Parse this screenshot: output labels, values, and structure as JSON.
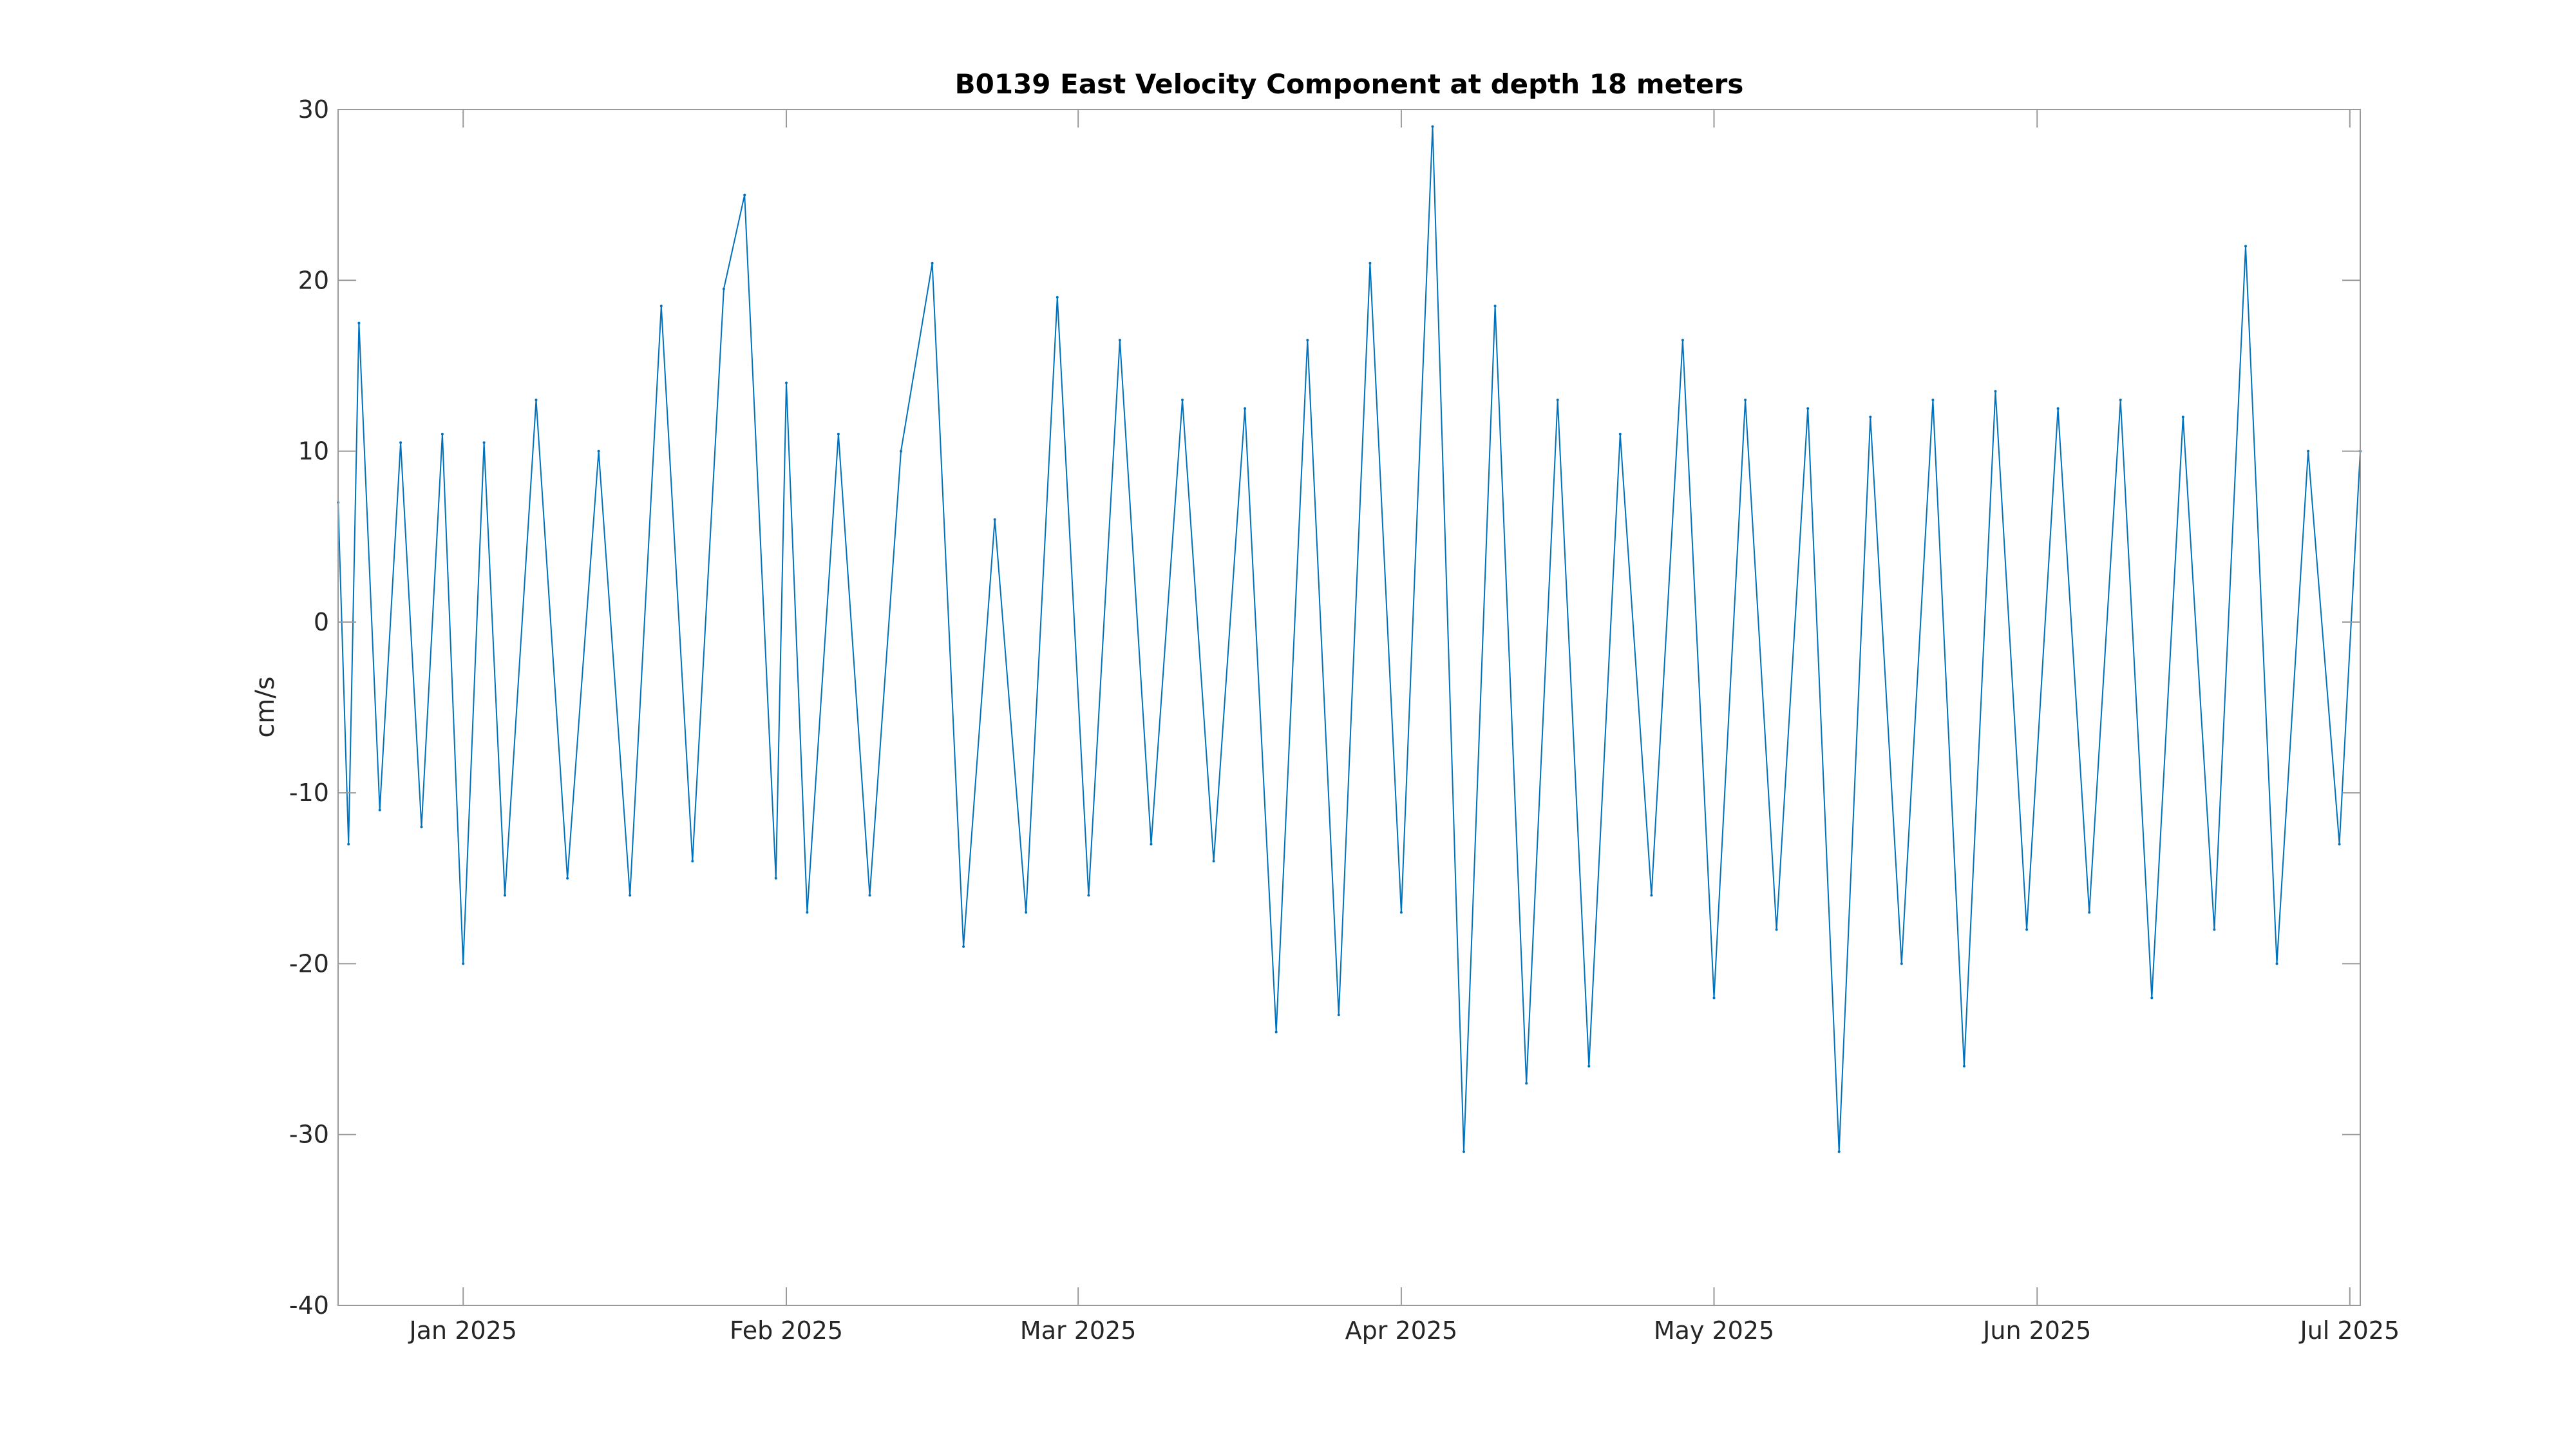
{
  "chart_data": {
    "type": "line",
    "title": "B0139 East Velocity Component at depth 18 meters",
    "xlabel": "",
    "ylabel": "cm/s",
    "ylim": [
      -40,
      30
    ],
    "xlim": [
      "2024-12-20",
      "2025-07-02"
    ],
    "grid": false,
    "color": "#0072BD",
    "y_ticks": [
      {
        "value": 30,
        "label": "30"
      },
      {
        "value": 20,
        "label": "20"
      },
      {
        "value": 10,
        "label": "10"
      },
      {
        "value": 0,
        "label": "0"
      },
      {
        "value": -10,
        "label": "-10"
      },
      {
        "value": -20,
        "label": "-20"
      },
      {
        "value": -30,
        "label": "-30"
      },
      {
        "value": -40,
        "label": "-40"
      }
    ],
    "x_ticks": [
      {
        "date": "2025-01-01",
        "label": "Jan 2025"
      },
      {
        "date": "2025-02-01",
        "label": "Feb 2025"
      },
      {
        "date": "2025-03-01",
        "label": "Mar 2025"
      },
      {
        "date": "2025-04-01",
        "label": "Apr 2025"
      },
      {
        "date": "2025-05-01",
        "label": "May 2025"
      },
      {
        "date": "2025-06-01",
        "label": "Jun 2025"
      },
      {
        "date": "2025-07-01",
        "label": "Jul 2025"
      }
    ],
    "series": [
      {
        "x": [
          "2024-12-20",
          "2024-12-21",
          "2024-12-22",
          "2024-12-24",
          "2024-12-26",
          "2024-12-28",
          "2024-12-30",
          "2025-01-01",
          "2025-01-03",
          "2025-01-05",
          "2025-01-08",
          "2025-01-11",
          "2025-01-14",
          "2025-01-17",
          "2025-01-20",
          "2025-01-23",
          "2025-01-26",
          "2025-01-28",
          "2025-01-31",
          "2025-02-01",
          "2025-02-03",
          "2025-02-06",
          "2025-02-09",
          "2025-02-12",
          "2025-02-15",
          "2025-02-18",
          "2025-02-21",
          "2025-02-24",
          "2025-02-27",
          "2025-03-02",
          "2025-03-05",
          "2025-03-08",
          "2025-03-11",
          "2025-03-14",
          "2025-03-17",
          "2025-03-20",
          "2025-03-23",
          "2025-03-26",
          "2025-03-29",
          "2025-04-01",
          "2025-04-04",
          "2025-04-07",
          "2025-04-10",
          "2025-04-13",
          "2025-04-16",
          "2025-04-19",
          "2025-04-22",
          "2025-04-25",
          "2025-04-28",
          "2025-05-01",
          "2025-05-04",
          "2025-05-07",
          "2025-05-10",
          "2025-05-13",
          "2025-05-16",
          "2025-05-19",
          "2025-05-22",
          "2025-05-25",
          "2025-05-28",
          "2025-05-31",
          "2025-06-03",
          "2025-06-06",
          "2025-06-09",
          "2025-06-12",
          "2025-06-15",
          "2025-06-18",
          "2025-06-21",
          "2025-06-24",
          "2025-06-27",
          "2025-06-30",
          "2025-07-02"
        ],
        "y": [
          7,
          -13,
          17.5,
          -11,
          10.5,
          -12,
          11,
          -20,
          10.5,
          -16,
          13,
          -15,
          10,
          -16,
          18.5,
          -14,
          19.5,
          25,
          -15,
          14,
          -17,
          11,
          -16,
          10,
          21,
          -19,
          6,
          -17,
          19,
          -16,
          16.5,
          -13,
          13,
          -14,
          12.5,
          -24,
          16.5,
          -23,
          21,
          -17,
          29,
          -31,
          18.5,
          -27,
          13,
          -26,
          11,
          -16,
          16.5,
          -22,
          13,
          -18,
          12.5,
          -31,
          12,
          -20,
          13,
          -26,
          13.5,
          -18,
          12.5,
          -17,
          13,
          -22,
          12,
          -18,
          22,
          -20,
          10,
          -13,
          10
        ]
      }
    ]
  }
}
